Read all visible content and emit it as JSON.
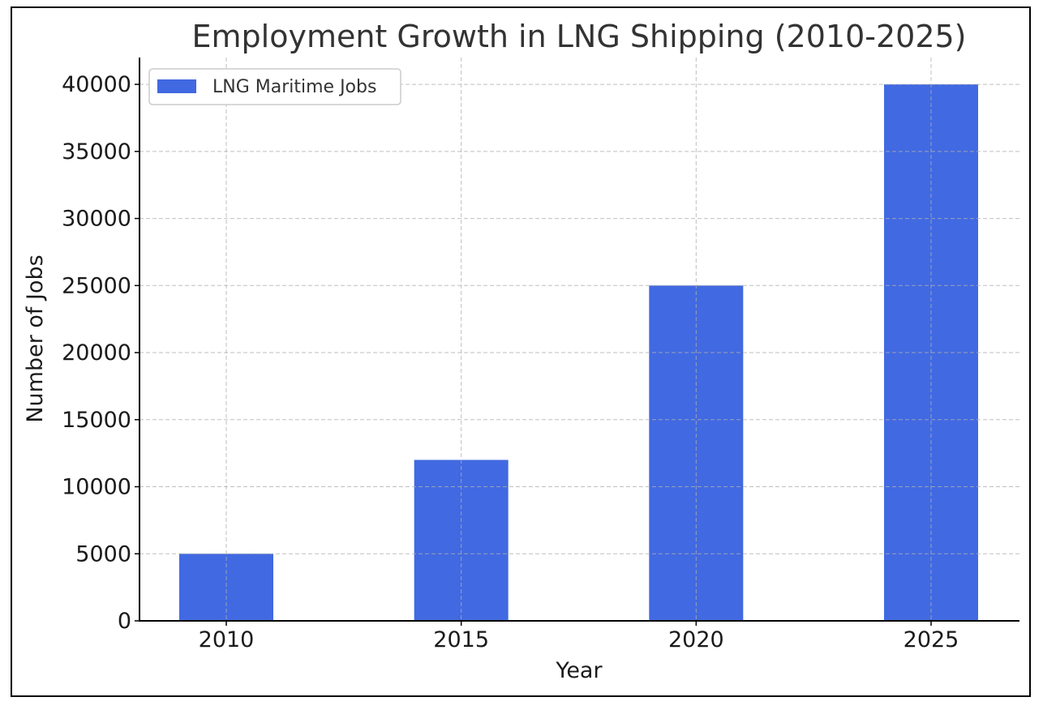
{
  "chart_data": {
    "type": "bar",
    "title": "Employment Growth in LNG Shipping (2010-2025)",
    "xlabel": "Year",
    "ylabel": "Number of Jobs",
    "categories": [
      "2010",
      "2015",
      "2020",
      "2025"
    ],
    "series": [
      {
        "name": "LNG Maritime Jobs",
        "values": [
          5000,
          12000,
          25000,
          40000
        ],
        "color": "#4169E1"
      }
    ],
    "ylim": [
      0,
      42000
    ],
    "yticks": [
      0,
      5000,
      10000,
      15000,
      20000,
      25000,
      30000,
      35000,
      40000
    ],
    "grid": true,
    "legend_position": "top-left"
  }
}
